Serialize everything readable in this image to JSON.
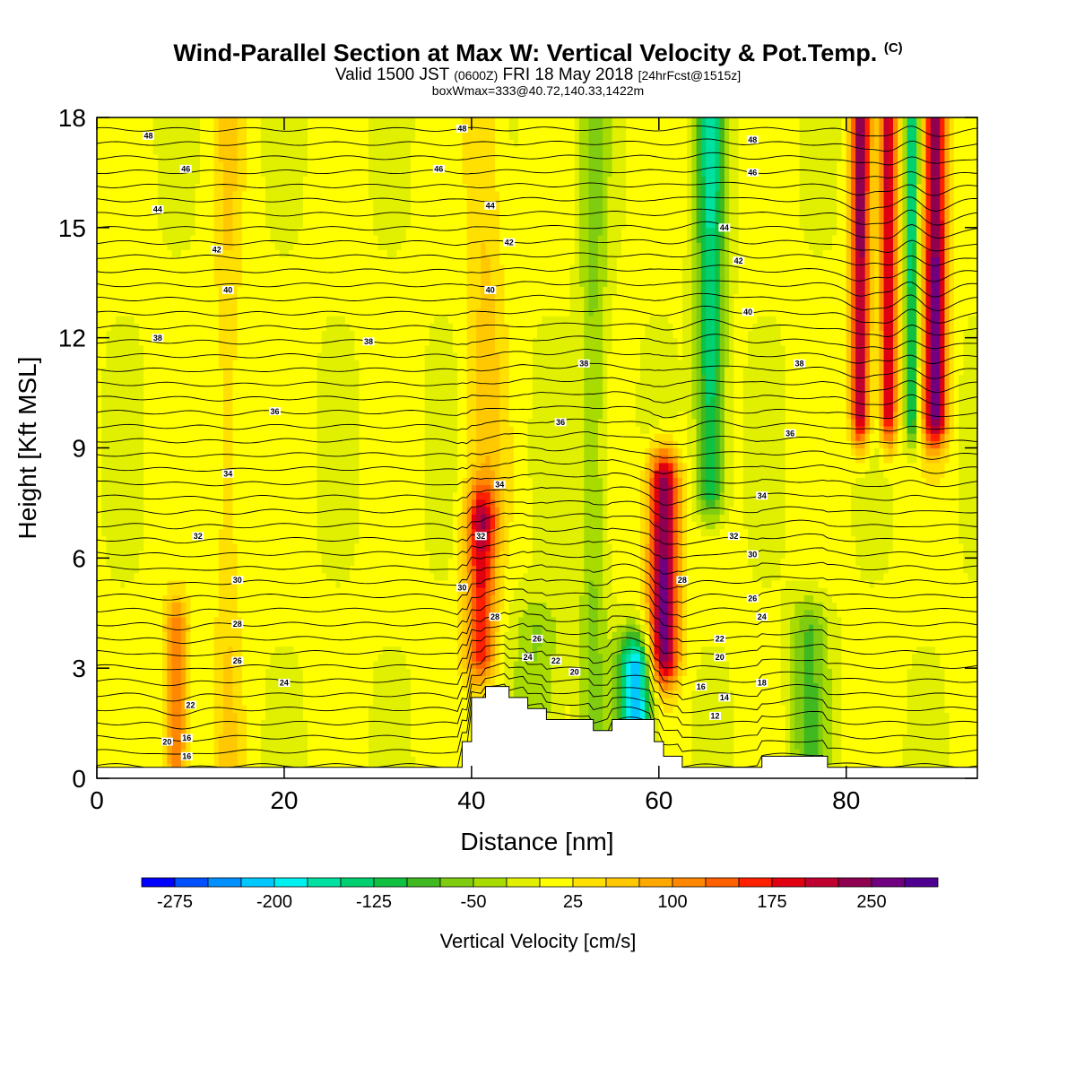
{
  "header": {
    "title": "Wind-Parallel Section at Max W: Vertical Velocity & Pot.Temp.",
    "copyright": "(C)",
    "valid_prefix": "Valid 1500 JST",
    "valid_utc": "(0600Z)",
    "valid_date": "FRI 18 May 2018",
    "forecast": "[24hrFcst@1515z]",
    "box_info": "boxWmax=333@40.72,140.33,1422m"
  },
  "chart_data": {
    "type": "heatmap",
    "xlabel": "Distance [nm]",
    "ylabel": "Height [Kft MSL]",
    "xlim": [
      0,
      94
    ],
    "ylim": [
      0,
      18
    ],
    "x_ticks": [
      0,
      20,
      40,
      60,
      80
    ],
    "y_ticks": [
      0,
      3,
      6,
      9,
      12,
      15,
      18
    ],
    "colorbar": {
      "title": "Vertical Velocity [cm/s]",
      "levels": [
        -300,
        -275,
        -250,
        -225,
        -200,
        -175,
        -150,
        -125,
        -100,
        -75,
        -50,
        -25,
        0,
        25,
        50,
        75,
        100,
        125,
        150,
        175,
        200,
        225,
        250,
        275,
        300
      ],
      "tick_labels": [
        -275,
        -200,
        -125,
        -50,
        25,
        100,
        175,
        250
      ],
      "colors": [
        "#0000ff",
        "#0050ff",
        "#0090ff",
        "#00c8ff",
        "#00f0f0",
        "#00e0a0",
        "#00d070",
        "#10c040",
        "#40b820",
        "#80cc10",
        "#a8dc00",
        "#e0f000",
        "#ffff00",
        "#ffe000",
        "#ffc800",
        "#ffa800",
        "#ff8800",
        "#ff6000",
        "#ff2000",
        "#e00010",
        "#c00030",
        "#900050",
        "#700080",
        "#500090"
      ]
    },
    "vertical_velocity_columns": [
      {
        "x": 8.5,
        "y_range": [
          0,
          4
        ],
        "w": 120,
        "half_width": 1.3,
        "note": "updraft column"
      },
      {
        "x": 14,
        "y_range": [
          0,
          18
        ],
        "w": 40,
        "half_width": 1.5
      },
      {
        "x": 41,
        "y_range": [
          3.5,
          7
        ],
        "w": 170,
        "half_width": 1.6
      },
      {
        "x": 41.5,
        "y_range": [
          7,
          18
        ],
        "w": 50,
        "half_width": 2.0
      },
      {
        "x": 47,
        "y_range": [
          2,
          4
        ],
        "w": -60,
        "half_width": 2.5
      },
      {
        "x": 53,
        "y_range": [
          1.5,
          18
        ],
        "w": -60,
        "half_width": 1.5
      },
      {
        "x": 57.5,
        "y_range": [
          1.5,
          3
        ],
        "w": -230,
        "half_width": 1.8
      },
      {
        "x": 60.5,
        "y_range": [
          3.5,
          8
        ],
        "w": 260,
        "half_width": 1.6
      },
      {
        "x": 65.5,
        "y_range": [
          8,
          18
        ],
        "w": -150,
        "half_width": 1.5
      },
      {
        "x": 76,
        "y_range": [
          1,
          4
        ],
        "w": -80,
        "half_width": 2.0
      },
      {
        "x": 81.5,
        "y_range": [
          10,
          18
        ],
        "w": 230,
        "half_width": 1.0
      },
      {
        "x": 84.5,
        "y_range": [
          10,
          18
        ],
        "w": 200,
        "half_width": 0.9
      },
      {
        "x": 87,
        "y_range": [
          10,
          18
        ],
        "w": -150,
        "half_width": 0.7
      },
      {
        "x": 89.5,
        "y_range": [
          10,
          18
        ],
        "w": 260,
        "half_width": 1.2
      }
    ],
    "terrain": [
      [
        0,
        0.3
      ],
      [
        39,
        0.3
      ],
      [
        39,
        1.0
      ],
      [
        40,
        1.0
      ],
      [
        40,
        2.2
      ],
      [
        41.5,
        2.2
      ],
      [
        41.5,
        2.5
      ],
      [
        44,
        2.5
      ],
      [
        44,
        2.2
      ],
      [
        46,
        2.2
      ],
      [
        46,
        1.9
      ],
      [
        48,
        1.9
      ],
      [
        48,
        1.6
      ],
      [
        53,
        1.6
      ],
      [
        53,
        1.3
      ],
      [
        55,
        1.3
      ],
      [
        55,
        1.6
      ],
      [
        59.5,
        1.6
      ],
      [
        59.5,
        1.0
      ],
      [
        60.5,
        1.0
      ],
      [
        60.5,
        0.6
      ],
      [
        62.5,
        0.6
      ],
      [
        62.5,
        0.3
      ],
      [
        71,
        0.3
      ],
      [
        71,
        0.6
      ],
      [
        78,
        0.6
      ],
      [
        78,
        0.3
      ],
      [
        94,
        0.3
      ]
    ],
    "theta_contour_labels": [
      {
        "x": 5.5,
        "y": 17.5,
        "text": "48"
      },
      {
        "x": 39,
        "y": 17.7,
        "text": "48"
      },
      {
        "x": 70,
        "y": 17.4,
        "text": "48"
      },
      {
        "x": 9.5,
        "y": 16.6,
        "text": "46"
      },
      {
        "x": 36.5,
        "y": 16.6,
        "text": "46"
      },
      {
        "x": 70,
        "y": 16.5,
        "text": "46"
      },
      {
        "x": 6.5,
        "y": 15.5,
        "text": "44"
      },
      {
        "x": 42,
        "y": 15.6,
        "text": "44"
      },
      {
        "x": 67,
        "y": 15.0,
        "text": "44"
      },
      {
        "x": 12.8,
        "y": 14.4,
        "text": "42"
      },
      {
        "x": 44,
        "y": 14.6,
        "text": "42"
      },
      {
        "x": 68.5,
        "y": 14.1,
        "text": "42"
      },
      {
        "x": 14,
        "y": 13.3,
        "text": "40"
      },
      {
        "x": 42,
        "y": 13.3,
        "text": "40"
      },
      {
        "x": 69.5,
        "y": 12.7,
        "text": "40"
      },
      {
        "x": 6.5,
        "y": 12.0,
        "text": "38"
      },
      {
        "x": 29,
        "y": 11.9,
        "text": "38"
      },
      {
        "x": 52,
        "y": 11.3,
        "text": "38"
      },
      {
        "x": 75,
        "y": 11.3,
        "text": "38"
      },
      {
        "x": 19,
        "y": 10.0,
        "text": "36"
      },
      {
        "x": 49.5,
        "y": 9.7,
        "text": "36"
      },
      {
        "x": 74,
        "y": 9.4,
        "text": "36"
      },
      {
        "x": 14,
        "y": 8.3,
        "text": "34"
      },
      {
        "x": 43,
        "y": 8.0,
        "text": "34"
      },
      {
        "x": 71,
        "y": 7.7,
        "text": "34"
      },
      {
        "x": 10.8,
        "y": 6.6,
        "text": "32"
      },
      {
        "x": 41,
        "y": 6.6,
        "text": "32"
      },
      {
        "x": 68,
        "y": 6.6,
        "text": "32"
      },
      {
        "x": 15,
        "y": 5.4,
        "text": "30"
      },
      {
        "x": 39,
        "y": 5.2,
        "text": "30"
      },
      {
        "x": 70,
        "y": 6.1,
        "text": "30"
      },
      {
        "x": 15,
        "y": 4.2,
        "text": "28"
      },
      {
        "x": 42.5,
        "y": 4.4,
        "text": "28"
      },
      {
        "x": 62.5,
        "y": 5.4,
        "text": "28"
      },
      {
        "x": 70,
        "y": 4.9,
        "text": "26"
      },
      {
        "x": 15,
        "y": 3.2,
        "text": "26"
      },
      {
        "x": 47,
        "y": 3.8,
        "text": "26"
      },
      {
        "x": 71,
        "y": 4.4,
        "text": "24"
      },
      {
        "x": 20,
        "y": 2.6,
        "text": "24"
      },
      {
        "x": 46,
        "y": 3.3,
        "text": "24"
      },
      {
        "x": 66.5,
        "y": 3.8,
        "text": "22"
      },
      {
        "x": 49,
        "y": 3.2,
        "text": "22"
      },
      {
        "x": 10,
        "y": 2.0,
        "text": "22"
      },
      {
        "x": 66.5,
        "y": 3.3,
        "text": "20"
      },
      {
        "x": 51,
        "y": 2.9,
        "text": "20"
      },
      {
        "x": 7.5,
        "y": 1.0,
        "text": "20"
      },
      {
        "x": 71,
        "y": 2.6,
        "text": "18"
      },
      {
        "x": 64.5,
        "y": 2.5,
        "text": "16"
      },
      {
        "x": 9.6,
        "y": 1.1,
        "text": "16"
      },
      {
        "x": 9.6,
        "y": 0.6,
        "text": "16"
      },
      {
        "x": 67,
        "y": 2.2,
        "text": "14"
      },
      {
        "x": 66,
        "y": 1.7,
        "text": "12"
      }
    ]
  }
}
